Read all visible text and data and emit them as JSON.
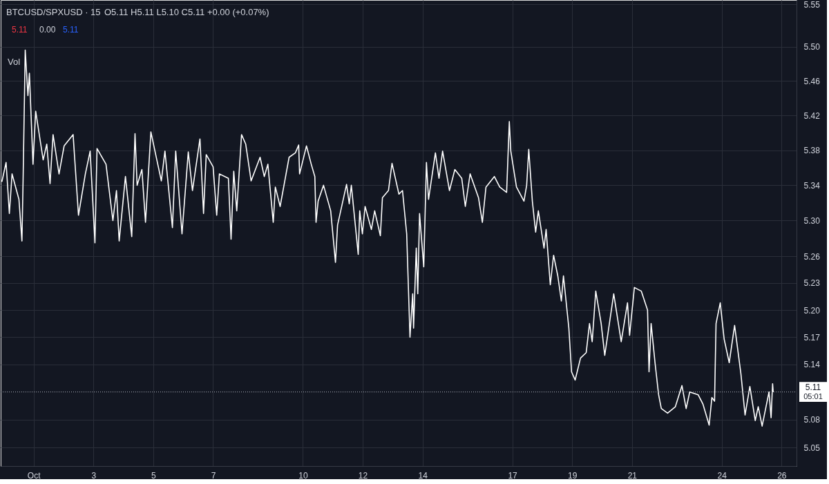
{
  "chart_data": {
    "type": "line",
    "title": "BTCUSD/SPXUSD · 15",
    "annotations": [
      "O5.11 H5.11 L5.10 C5.11 +0.00 (+0.07%)",
      "5.11",
      "0.00",
      "5.11",
      "Vol",
      "05:01"
    ],
    "color": "#ffffff",
    "x": [
      -0.06,
      0.08,
      0.19,
      0.28,
      0.51,
      0.61,
      0.65,
      0.72,
      0.81,
      0.86,
      0.98,
      1.07,
      1.32,
      1.44,
      1.55,
      1.65,
      1.85,
      2.02,
      2.32,
      2.5,
      2.73,
      2.89,
      3.05,
      3.12,
      3.42,
      3.65,
      3.77,
      3.86,
      4.07,
      4.28,
      4.39,
      4.46,
      4.62,
      4.74,
      4.92,
      5.15,
      5.27,
      5.39,
      5.64,
      5.75,
      5.96,
      6.17,
      6.31,
      6.56,
      6.68,
      6.77,
      7.0,
      7.12,
      7.21,
      7.51,
      7.6,
      7.69,
      7.79,
      7.95,
      8.09,
      8.27,
      8.57,
      8.71,
      8.83,
      9.01,
      9.08,
      9.24,
      9.54,
      9.75,
      9.86,
      9.89,
      10.12,
      10.28,
      10.4,
      10.44,
      10.51,
      10.69,
      10.93,
      11.09,
      11.16,
      11.46,
      11.55,
      11.62,
      11.85,
      11.9,
      11.99,
      12.08,
      12.29,
      12.4,
      12.59,
      12.66,
      12.86,
      12.98,
      13.21,
      13.33,
      13.47,
      13.58,
      13.67,
      13.7,
      13.79,
      13.84,
      13.9,
      14.04,
      14.13,
      14.2,
      14.43,
      14.55,
      14.67,
      14.9,
      15.08,
      15.31,
      15.43,
      15.59,
      15.87,
      16.0,
      16.12,
      16.4,
      16.58,
      16.81,
      16.9,
      16.95,
      17.14,
      17.39,
      17.48,
      17.55,
      17.67,
      17.78,
      17.87,
      18.06,
      18.13,
      18.27,
      18.38,
      18.52,
      18.64,
      18.71,
      18.89,
      18.98,
      19.1,
      19.28,
      19.47,
      19.58,
      19.67,
      19.79,
      19.97,
      20.09,
      20.39,
      20.64,
      20.85,
      20.92,
      21.08,
      21.31,
      21.52,
      21.57,
      21.64,
      21.77,
      21.89,
      21.98,
      22.19,
      22.45,
      22.67,
      22.81,
      22.93,
      23.21,
      23.37,
      23.58,
      23.67,
      23.76,
      23.81,
      23.95,
      24.08,
      24.25,
      24.43,
      24.64,
      24.78,
      24.94,
      25.12,
      25.22,
      25.35,
      25.58,
      25.65,
      25.7,
      25.72
    ],
    "values": [
      5.344,
      5.366,
      5.308,
      5.353,
      5.324,
      5.277,
      5.348,
      5.496,
      5.443,
      5.469,
      5.364,
      5.425,
      5.369,
      5.387,
      5.342,
      5.398,
      5.353,
      5.385,
      5.398,
      5.306,
      5.353,
      5.379,
      5.275,
      5.382,
      5.364,
      5.3,
      5.334,
      5.277,
      5.35,
      5.282,
      5.399,
      5.34,
      5.358,
      5.298,
      5.401,
      5.364,
      5.345,
      5.379,
      5.292,
      5.379,
      5.285,
      5.378,
      5.334,
      5.393,
      5.308,
      5.375,
      5.361,
      5.306,
      5.353,
      5.348,
      5.279,
      5.356,
      5.311,
      5.398,
      5.387,
      5.345,
      5.372,
      5.35,
      5.364,
      5.298,
      5.338,
      5.316,
      5.372,
      5.377,
      5.386,
      5.353,
      5.385,
      5.364,
      5.35,
      5.298,
      5.322,
      5.34,
      5.311,
      5.253,
      5.295,
      5.341,
      5.319,
      5.34,
      5.262,
      5.311,
      5.285,
      5.316,
      5.29,
      5.311,
      5.283,
      5.326,
      5.334,
      5.365,
      5.33,
      5.334,
      5.285,
      5.17,
      5.218,
      5.18,
      5.269,
      5.218,
      5.308,
      5.248,
      5.366,
      5.324,
      5.377,
      5.348,
      5.379,
      5.334,
      5.358,
      5.348,
      5.316,
      5.353,
      5.326,
      5.298,
      5.338,
      5.35,
      5.338,
      5.332,
      5.413,
      5.379,
      5.338,
      5.322,
      5.34,
      5.381,
      5.322,
      5.287,
      5.311,
      5.269,
      5.29,
      5.228,
      5.261,
      5.238,
      5.21,
      5.238,
      5.18,
      5.132,
      5.123,
      5.147,
      5.153,
      5.185,
      5.165,
      5.221,
      5.185,
      5.15,
      5.218,
      5.165,
      5.208,
      5.172,
      5.225,
      5.221,
      5.2,
      5.132,
      5.185,
      5.142,
      5.107,
      5.092,
      5.087,
      5.094,
      5.117,
      5.092,
      5.11,
      5.107,
      5.097,
      5.074,
      5.104,
      5.1,
      5.185,
      5.208,
      5.168,
      5.142,
      5.183,
      5.13,
      5.085,
      5.116,
      5.079,
      5.094,
      5.073,
      5.11,
      5.082,
      5.119,
      5.11
    ],
    "xlim": [
      -0.1,
      26.5
    ],
    "xticks": [
      {
        "value": 1,
        "label": "Oct"
      },
      3,
      5,
      7,
      10,
      12,
      14,
      17,
      19,
      21,
      24,
      26
    ],
    "ylim": [
      5.03,
      5.555
    ],
    "yticks": [
      5.05,
      5.08,
      5.14,
      5.17,
      {
        "value": 5.2,
        "label": "5.20"
      },
      5.23,
      5.26,
      {
        "value": 5.3,
        "label": "5.30"
      },
      5.34,
      5.38,
      5.42,
      5.46,
      {
        "value": 5.5,
        "label": "5.50"
      },
      5.55
    ],
    "log": "y",
    "grid": true,
    "ref_lines": [
      {
        "axis": "y",
        "value": 5.11,
        "label": "5.11",
        "color": "#b2b5be",
        "line_style": "dotted"
      }
    ]
  }
}
